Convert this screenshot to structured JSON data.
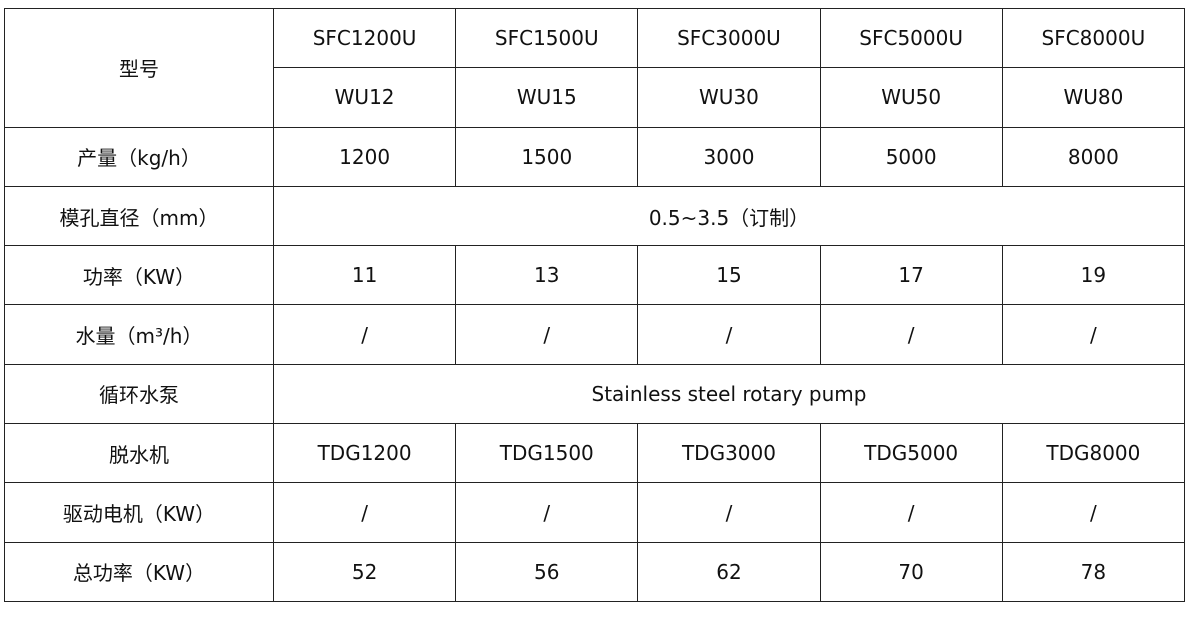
{
  "table": {
    "header": {
      "label": "型号",
      "models": [
        "SFC1200U",
        "SFC1500U",
        "SFC3000U",
        "SFC5000U",
        "SFC8000U"
      ],
      "codes": [
        "WU12",
        "WU15",
        "WU30",
        "WU50",
        "WU80"
      ]
    },
    "rows": [
      {
        "label": "产量（kg/h）",
        "cells": [
          "1200",
          "1500",
          "3000",
          "5000",
          "8000"
        ]
      },
      {
        "label": "模孔直径（mm）",
        "merged": "0.5~3.5（订制）"
      },
      {
        "label": "功率（KW）",
        "cells": [
          "11",
          "13",
          "15",
          "17",
          "19"
        ]
      },
      {
        "label": "水量（m³/h）",
        "cells": [
          "/",
          "/",
          "/",
          "/",
          "/"
        ]
      },
      {
        "label": "循环水泵",
        "merged": "Stainless steel rotary pump"
      },
      {
        "label": "脱水机",
        "cells": [
          "TDG1200",
          "TDG1500",
          "TDG3000",
          "TDG5000",
          "TDG8000"
        ]
      },
      {
        "label": "驱动电机（KW）",
        "cells": [
          "/",
          "/",
          "/",
          "/",
          "/"
        ]
      },
      {
        "label": "总功率（KW）",
        "cells": [
          "52",
          "56",
          "62",
          "70",
          "78"
        ]
      }
    ]
  }
}
